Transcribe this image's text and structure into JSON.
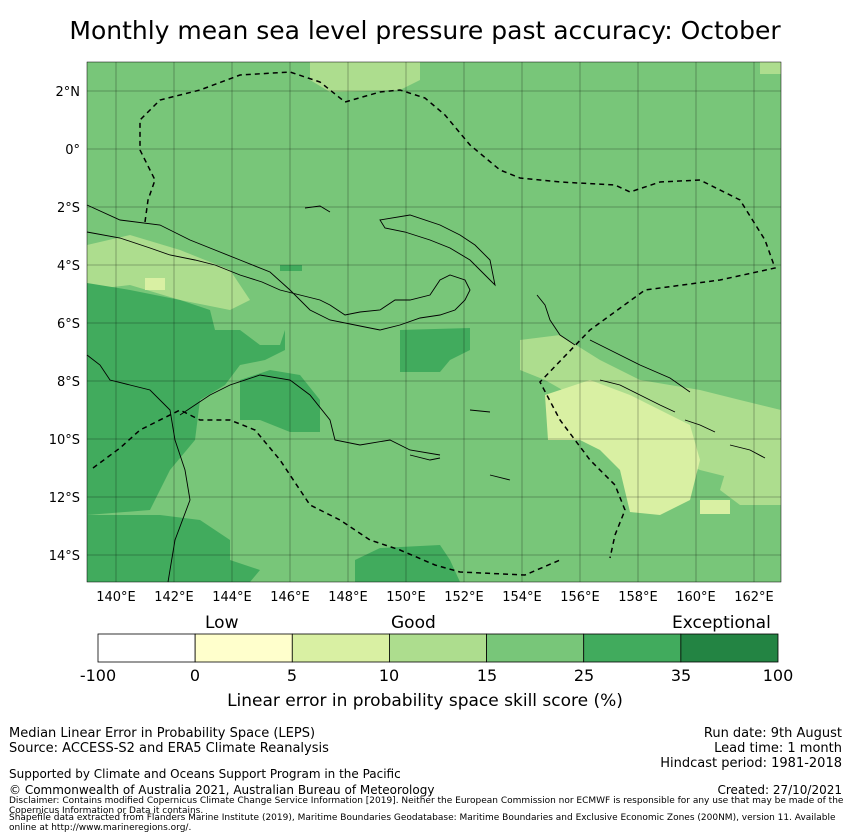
{
  "title": "Monthly mean sea level pressure past accuracy: October",
  "map": {
    "lon_ticks": [
      "140°E",
      "142°E",
      "144°E",
      "146°E",
      "148°E",
      "150°E",
      "152°E",
      "154°E",
      "156°E",
      "158°E",
      "160°E",
      "162°E"
    ],
    "lat_ticks": [
      "2°N",
      "0°",
      "2°S",
      "4°S",
      "6°S",
      "8°S",
      "10°S",
      "12°S",
      "14°S"
    ]
  },
  "colorbar": {
    "categories": [
      "Low",
      "Good",
      "Exceptional"
    ],
    "ticks": [
      "-100",
      "0",
      "5",
      "10",
      "15",
      "25",
      "35",
      "100"
    ],
    "colors": [
      "#ffffff",
      "#ffffcc",
      "#d9f0a3",
      "#addd8e",
      "#78c679",
      "#41ab5d",
      "#238443"
    ],
    "label": "Linear error in probability space skill score (%)"
  },
  "info": {
    "line1": "Median Linear Error in Probability Space (LEPS)",
    "line2": "Source: ACCESS-S2 and ERA5 Climate Reanalysis",
    "line3": "Supported by Climate and Oceans Support Program in the Pacific",
    "line4": "© Commonwealth of Australia 2021, Australian Bureau of Meteorology",
    "run_date": "Run date: 9th August",
    "lead_time": "Lead time: 1 month",
    "hindcast": "Hindcast period: 1981-2018",
    "created": "Created: 27/10/2021",
    "disclaimer": "Disclaimer: Contains modified Copernicus Climate Change Service Information [2019]. Neither the European Commission nor ECMWF is responsible for any use that may be made of the Copernicus Information or Data it contains.",
    "shapefile": "Shapefile data extracted from Flanders Marine Institute (2019), Maritime Boundaries Geodatabase: Maritime Boundaries and Exclusive Economic Zones (200NM), version 11. Available online at http://www.marineregions.org/."
  }
}
